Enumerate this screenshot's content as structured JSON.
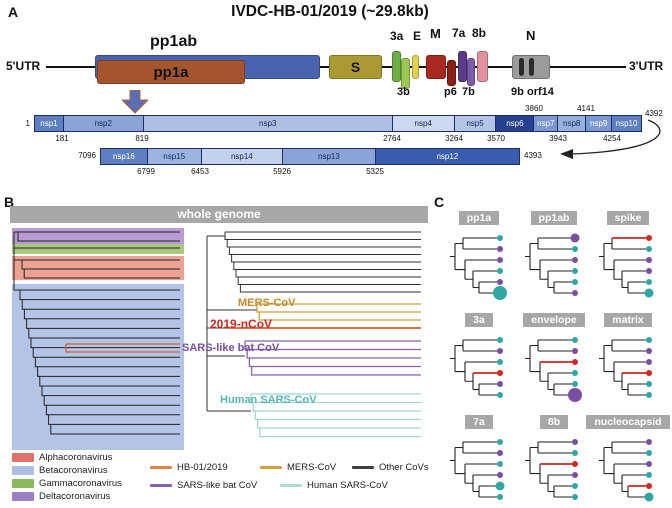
{
  "figure": {
    "panelA_label": "A",
    "panelB_label": "B",
    "panelC_label": "C"
  },
  "panelA": {
    "title": "IVDC-HB-01/2019  (~29.8kb)",
    "utr5": "5'UTR",
    "utr3": "3'UTR",
    "genes": {
      "pp1a": "pp1a",
      "pp1ab": "pp1ab",
      "s": "S",
      "orf3a": "3a",
      "orf3b": "3b",
      "e": "E",
      "m": "M",
      "p6": "p6",
      "orf7a": "7a",
      "orf7b": "7b",
      "orf8b": "8b",
      "n": "N",
      "orf9b": "9b",
      "orf14": "orf14"
    },
    "nspRow1": {
      "start": "1",
      "end": "4392",
      "segments": [
        {
          "name": "nsp1"
        },
        {
          "name": "nsp2"
        },
        {
          "name": "nsp3"
        },
        {
          "name": "nsp4"
        },
        {
          "name": "nsp5"
        },
        {
          "name": "nsp6"
        },
        {
          "name": "nsp7"
        },
        {
          "name": "nsp8"
        },
        {
          "name": "nsp9"
        },
        {
          "name": "nsp10"
        }
      ],
      "coordsBelow": [
        "181",
        "819",
        "2764",
        "3264",
        "3570",
        "3943",
        "4254"
      ],
      "coordsAbove": [
        "3860",
        "4141"
      ]
    },
    "nspRow2": {
      "start": "7096",
      "end": "4393",
      "segments": [
        {
          "name": "nsp16"
        },
        {
          "name": "nsp15"
        },
        {
          "name": "nsp14"
        },
        {
          "name": "nsp13"
        },
        {
          "name": "nsp12"
        }
      ],
      "coordsBelow": [
        "6799",
        "6453",
        "5926",
        "5325"
      ]
    }
  },
  "panelB": {
    "header": "whole genome",
    "cladeLabels": [
      {
        "name": "MERS-CoV",
        "color": "#c8882a"
      },
      {
        "name": "2019-nCoV",
        "color": "#cc2a1e"
      },
      {
        "name": "SARS-like bat CoV",
        "color": "#7a4fa3"
      },
      {
        "name": "Human SARS-CoV",
        "color": "#54b8b4"
      }
    ],
    "genusLegend": [
      {
        "label": "Alphacoronavirus",
        "color": "#e1726b"
      },
      {
        "label": "Betacoronavirus",
        "color": "#adbfe3"
      },
      {
        "label": "Gammacoronavirus",
        "color": "#8cb85c"
      },
      {
        "label": "Deltacoronavirus",
        "color": "#9b7fc4"
      }
    ],
    "lineageLegend": [
      {
        "label": "HB-01/2019",
        "color": "#e0824d"
      },
      {
        "label": "MERS-CoV",
        "color": "#cfa13b"
      },
      {
        "label": "Other CoVs",
        "color": "#3f3f3f"
      },
      {
        "label": "SARS-like bat CoV",
        "color": "#8a5fb0"
      },
      {
        "label": "Human SARS-CoV",
        "color": "#aadbd7"
      }
    ]
  },
  "panelC": {
    "trees": [
      {
        "title": "pp1a",
        "tips": [
          {
            "c": "#2fa8a4",
            "r": 3
          },
          {
            "c": "#7a4fa3",
            "r": 3
          },
          {
            "c": "#7a4fa3",
            "r": 3
          },
          {
            "c": "#2fa8a4",
            "r": 3
          },
          {
            "c": "#7a4fa3",
            "r": 3
          },
          {
            "c": "#2fa8a4",
            "r": 7
          }
        ]
      },
      {
        "title": "pp1ab",
        "tips": [
          {
            "c": "#7a4fa3",
            "r": 4.5
          },
          {
            "c": "#2fa8a4",
            "r": 3
          },
          {
            "c": "#7a4fa3",
            "r": 3
          },
          {
            "c": "#2fa8a4",
            "r": 3
          },
          {
            "c": "#2fa8a4",
            "r": 3
          },
          {
            "c": "#7a4fa3",
            "r": 3
          }
        ]
      },
      {
        "title": "spike",
        "tips": [
          {
            "c": "#cc2a1e",
            "r": 3,
            "b": true
          },
          {
            "c": "#2fa8a4",
            "r": 3
          },
          {
            "c": "#7a4fa3",
            "r": 3
          },
          {
            "c": "#7a4fa3",
            "r": 3
          },
          {
            "c": "#2fa8a4",
            "r": 3
          },
          {
            "c": "#2fa8a4",
            "r": 4.5
          }
        ]
      },
      {
        "title": "3a",
        "tips": [
          {
            "c": "#2fa8a4",
            "r": 3
          },
          {
            "c": "#7a4fa3",
            "r": 3
          },
          {
            "c": "#2fa8a4",
            "r": 3
          },
          {
            "c": "#cc2a1e",
            "r": 3,
            "b": true
          },
          {
            "c": "#7a4fa3",
            "r": 3
          },
          {
            "c": "#2fa8a4",
            "r": 3
          }
        ]
      },
      {
        "title": "envelope",
        "tips": [
          {
            "c": "#2fa8a4",
            "r": 3
          },
          {
            "c": "#7a4fa3",
            "r": 3
          },
          {
            "c": "#cc2a1e",
            "r": 3,
            "b": true
          },
          {
            "c": "#2fa8a4",
            "r": 3
          },
          {
            "c": "#2fa8a4",
            "r": 3
          },
          {
            "c": "#7a4fa3",
            "r": 7
          }
        ]
      },
      {
        "title": "matrix",
        "tips": [
          {
            "c": "#2fa8a4",
            "r": 3
          },
          {
            "c": "#7a4fa3",
            "r": 3
          },
          {
            "c": "#7a4fa3",
            "r": 3
          },
          {
            "c": "#cc2a1e",
            "r": 3,
            "b": true
          },
          {
            "c": "#2fa8a4",
            "r": 3
          },
          {
            "c": "#2fa8a4",
            "r": 3
          }
        ]
      },
      {
        "title": "7a",
        "tips": [
          {
            "c": "#2fa8a4",
            "r": 3
          },
          {
            "c": "#7a4fa3",
            "r": 3
          },
          {
            "c": "#2fa8a4",
            "r": 3
          },
          {
            "c": "#7a4fa3",
            "r": 3
          },
          {
            "c": "#2fa8a4",
            "r": 4.5
          },
          {
            "c": "#2fa8a4",
            "r": 3
          }
        ]
      },
      {
        "title": "8b",
        "tips": [
          {
            "c": "#7a4fa3",
            "r": 3
          },
          {
            "c": "#2fa8a4",
            "r": 3
          },
          {
            "c": "#cc2a1e",
            "r": 3,
            "b": true
          },
          {
            "c": "#7a4fa3",
            "r": 3
          },
          {
            "c": "#2fa8a4",
            "r": 3
          },
          {
            "c": "#2fa8a4",
            "r": 3
          }
        ]
      },
      {
        "title": "nucleocapsid",
        "tips": [
          {
            "c": "#7a4fa3",
            "r": 3
          },
          {
            "c": "#2fa8a4",
            "r": 3
          },
          {
            "c": "#7a4fa3",
            "r": 3
          },
          {
            "c": "#2fa8a4",
            "r": 3
          },
          {
            "c": "#cc2a1e",
            "r": 3,
            "b": true
          },
          {
            "c": "#2fa8a4",
            "r": 4.5
          }
        ]
      }
    ]
  }
}
